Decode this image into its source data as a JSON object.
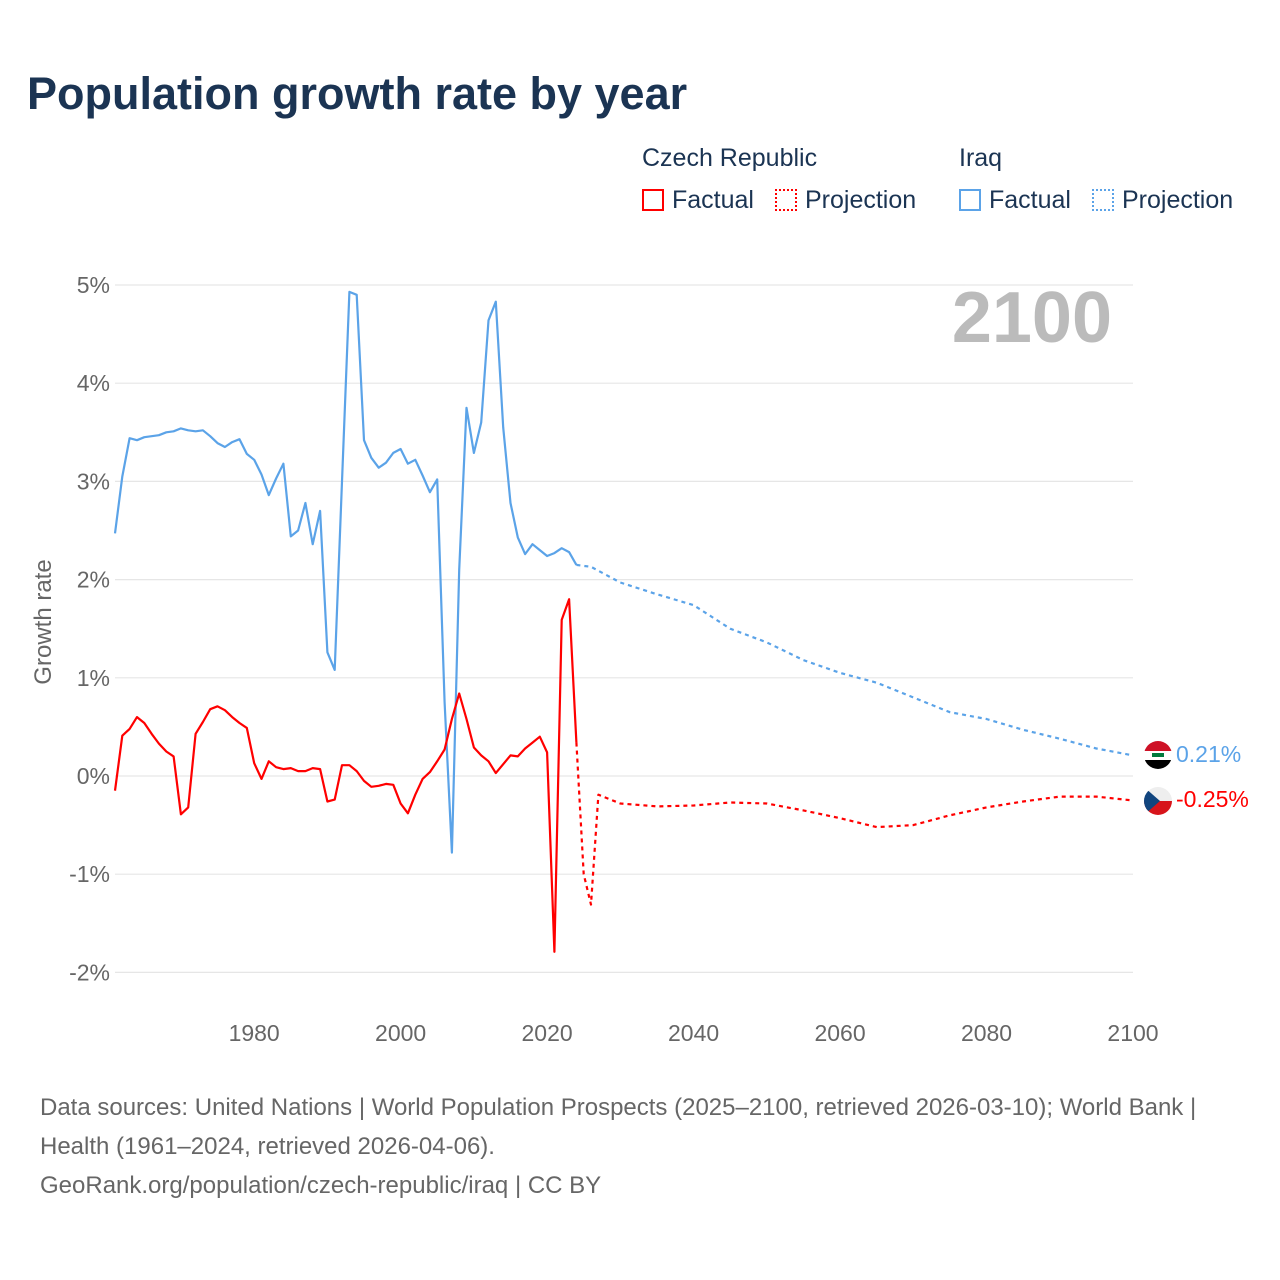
{
  "title": "Population growth rate by year",
  "legend": {
    "groups": [
      {
        "name": "Czech Republic",
        "color": "#ff0000",
        "factual": "Factual",
        "projection": "Projection"
      },
      {
        "name": "Iraq",
        "color": "#5ba3e8",
        "factual": "Factual",
        "projection": "Projection"
      }
    ]
  },
  "year_indicator": "2100",
  "end_labels": {
    "iraq": "0.21%",
    "czech": "-0.25%"
  },
  "source_lines": [
    "Data sources: United Nations | World Population Prospects (2025–2100, retrieved 2026-03-10); World Bank | Health (1961–2024, retrieved 2026-04-06).",
    "GeoRank.org/population/czech-republic/iraq | CC BY"
  ],
  "chart_data": {
    "type": "line",
    "title": "Population growth rate by year",
    "xlabel": "",
    "ylabel": "Growth rate",
    "xlim": [
      1961,
      2100
    ],
    "ylim": [
      -2,
      5
    ],
    "x_ticks": [
      1980,
      2000,
      2020,
      2040,
      2060,
      2080,
      2100
    ],
    "y_ticks": [
      {
        "v": 5,
        "label": "5%"
      },
      {
        "v": 4,
        "label": "4%"
      },
      {
        "v": 3,
        "label": "3%"
      },
      {
        "v": 2,
        "label": "2%"
      },
      {
        "v": 1,
        "label": "1%"
      },
      {
        "v": 0,
        "label": "0%"
      },
      {
        "v": -1,
        "label": "-1%"
      },
      {
        "v": -2,
        "label": "-2%"
      }
    ],
    "grid": true,
    "legend_position": "top-right",
    "series": [
      {
        "name": "Iraq Factual",
        "color": "#5ba3e8",
        "dashed": false,
        "start": 1961,
        "values": [
          2.47,
          3.05,
          3.44,
          3.42,
          3.45,
          3.46,
          3.47,
          3.5,
          3.51,
          3.54,
          3.52,
          3.51,
          3.52,
          3.46,
          3.39,
          3.35,
          3.4,
          3.43,
          3.28,
          3.22,
          3.07,
          2.86,
          3.03,
          3.18,
          2.44,
          2.5,
          2.78,
          2.36,
          2.7,
          1.26,
          1.08,
          3.0,
          4.93,
          4.9,
          3.42,
          3.24,
          3.14,
          3.19,
          3.29,
          3.33,
          3.18,
          3.22,
          3.06,
          2.89,
          3.02,
          0.75,
          -0.78,
          2.1,
          3.75,
          3.29,
          3.6,
          4.64,
          4.83,
          3.55,
          2.78,
          2.43,
          2.26,
          2.36,
          2.3,
          2.24,
          2.27,
          2.32,
          2.28,
          2.15
        ]
      },
      {
        "name": "Iraq Projection",
        "color": "#5ba3e8",
        "dashed": true,
        "x": [
          2024,
          2025,
          2026,
          2030,
          2035,
          2040,
          2045,
          2050,
          2055,
          2060,
          2065,
          2070,
          2075,
          2080,
          2085,
          2090,
          2095,
          2100
        ],
        "values": [
          2.15,
          2.14,
          2.13,
          1.97,
          1.85,
          1.74,
          1.5,
          1.36,
          1.18,
          1.05,
          0.95,
          0.8,
          0.65,
          0.58,
          0.47,
          0.38,
          0.28,
          0.21
        ]
      },
      {
        "name": "Czech Republic Factual",
        "color": "#ff0000",
        "dashed": false,
        "start": 1961,
        "values": [
          -0.15,
          0.41,
          0.48,
          0.6,
          0.54,
          0.43,
          0.33,
          0.25,
          0.2,
          -0.39,
          -0.32,
          0.43,
          0.55,
          0.68,
          0.71,
          0.67,
          0.6,
          0.54,
          0.49,
          0.13,
          -0.03,
          0.15,
          0.09,
          0.07,
          0.08,
          0.05,
          0.05,
          0.08,
          0.07,
          -0.26,
          -0.24,
          0.11,
          0.11,
          0.05,
          -0.05,
          -0.11,
          -0.1,
          -0.08,
          -0.09,
          -0.28,
          -0.38,
          -0.19,
          -0.03,
          0.04,
          0.15,
          0.27,
          0.58,
          0.84,
          0.58,
          0.29,
          0.21,
          0.15,
          0.03,
          0.12,
          0.21,
          0.2,
          0.28,
          0.34,
          0.4,
          0.24,
          -1.79,
          1.59,
          1.8,
          0.34
        ]
      },
      {
        "name": "Czech Republic Projection",
        "color": "#ff0000",
        "dashed": true,
        "x": [
          2024,
          2025,
          2026,
          2027,
          2030,
          2035,
          2040,
          2045,
          2050,
          2055,
          2060,
          2065,
          2070,
          2075,
          2080,
          2085,
          2090,
          2095,
          2100
        ],
        "values": [
          0.34,
          -1.0,
          -1.31,
          -0.19,
          -0.28,
          -0.31,
          -0.3,
          -0.27,
          -0.28,
          -0.35,
          -0.43,
          -0.52,
          -0.5,
          -0.4,
          -0.32,
          -0.26,
          -0.21,
          -0.21,
          -0.25
        ]
      }
    ]
  }
}
